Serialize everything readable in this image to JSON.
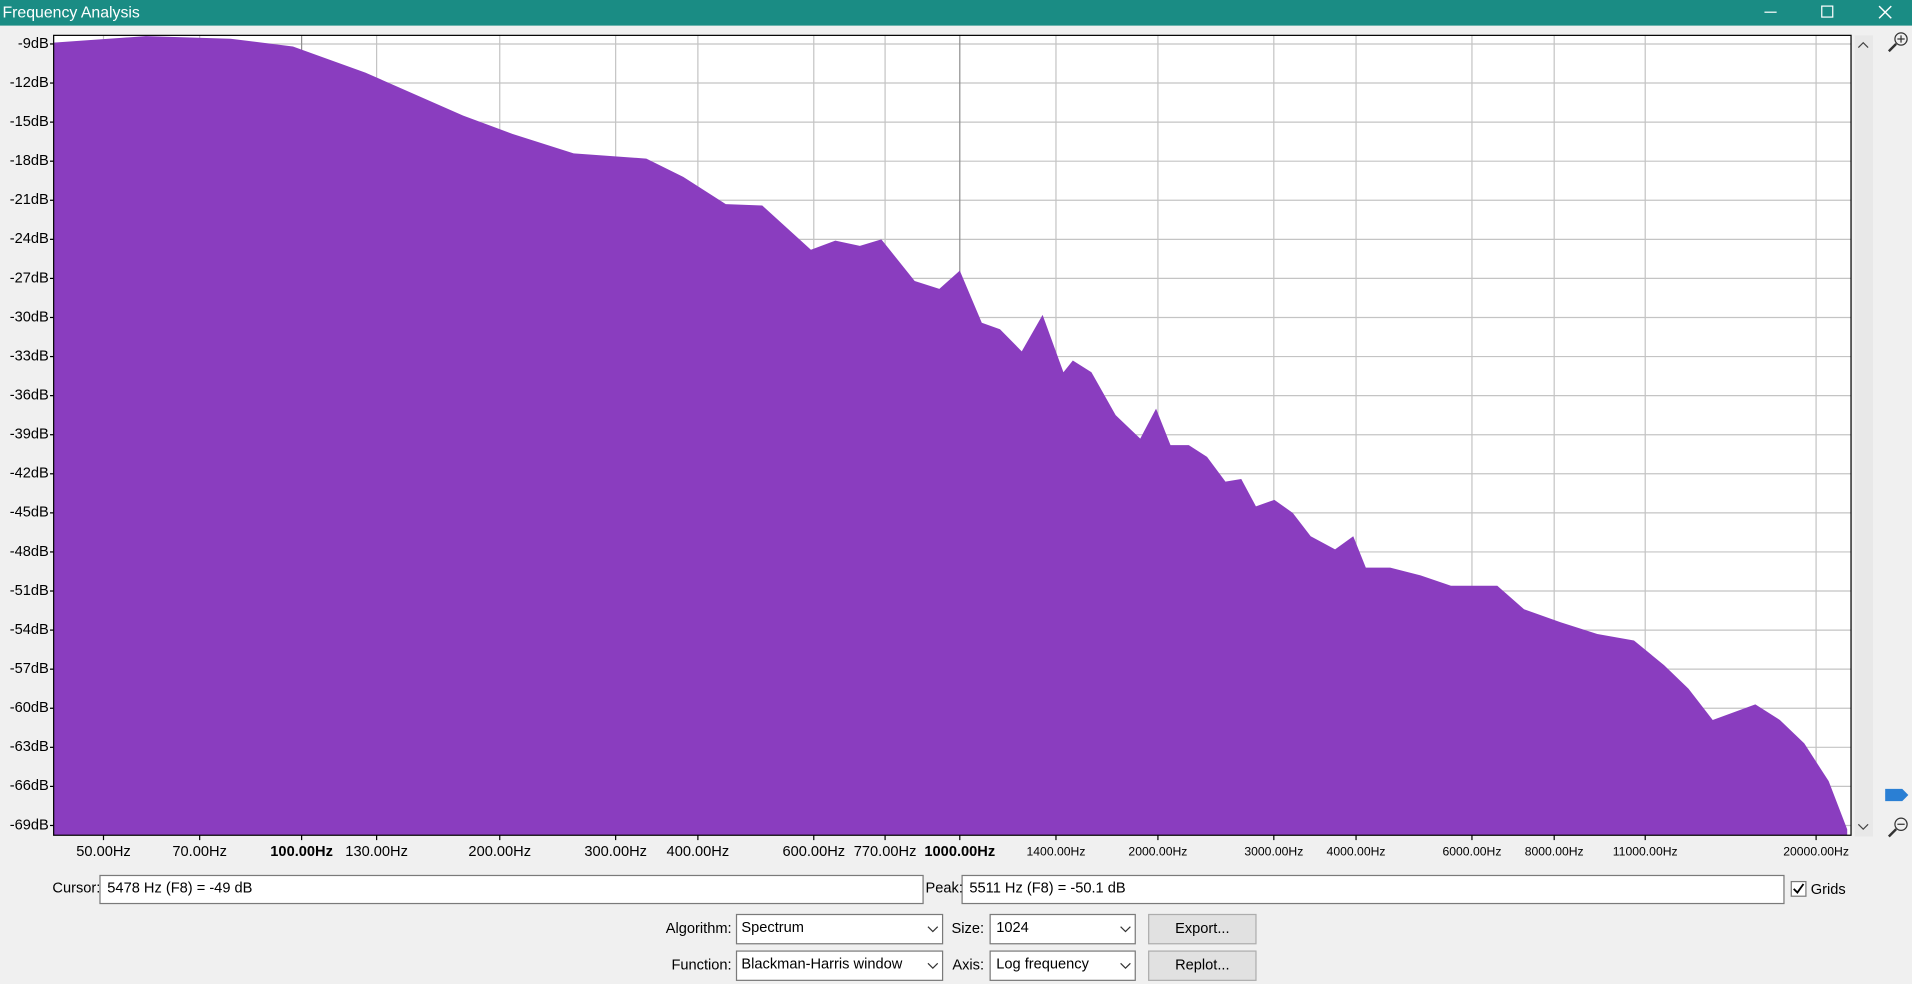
{
  "window": {
    "title": "Frequency Analysis"
  },
  "chart_data": {
    "type": "area",
    "x": [
      42,
      58,
      78,
      97,
      125,
      176,
      209,
      259,
      334,
      380,
      441,
      501,
      594,
      647,
      705,
      760,
      854,
      931,
      1000,
      1080,
      1151,
      1242,
      1336,
      1437,
      1485,
      1585,
      1725,
      1880,
      1987,
      2090,
      2228,
      2375,
      2533,
      2677,
      2818,
      3006,
      3205,
      3413,
      3717,
      3961,
      4139,
      4507,
      5012,
      5575,
      6556,
      7199,
      8180,
      9303,
      10576,
      11754,
      12800,
      13930,
      16170,
      17620,
      19190,
      20900,
      22300
    ],
    "values": [
      -8.9,
      -8.4,
      -8.6,
      -9.2,
      -11.2,
      -14.5,
      -15.9,
      -17.4,
      -17.8,
      -19.2,
      -21.3,
      -21.4,
      -24.8,
      -24.1,
      -24.5,
      -24.0,
      -27.2,
      -27.8,
      -26.4,
      -30.4,
      -30.9,
      -32.6,
      -29.8,
      -34.2,
      -33.3,
      -34.2,
      -37.5,
      -39.3,
      -37.0,
      -39.8,
      -39.8,
      -40.7,
      -42.6,
      -42.4,
      -44.5,
      -44.0,
      -45.0,
      -46.8,
      -47.8,
      -46.8,
      -49.2,
      -49.2,
      -49.8,
      -50.6,
      -50.6,
      -52.4,
      -53.4,
      -54.3,
      -54.8,
      -56.7,
      -58.5,
      -60.9,
      -59.7,
      -60.9,
      -62.7,
      -65.6,
      -69.3
    ],
    "color": "#8a3dbf",
    "xlim": [
      42,
      22600
    ],
    "ylim": [
      -69.75,
      -8.34
    ],
    "x_log": true,
    "grid": true,
    "xticks": [
      {
        "value": 50,
        "label": "50.00Hz"
      },
      {
        "value": 70,
        "label": "70.00Hz"
      },
      {
        "value": 100,
        "label": "100.00Hz"
      },
      {
        "value": 130,
        "label": "130.00Hz"
      },
      {
        "value": 200,
        "label": "200.00Hz"
      },
      {
        "value": 300,
        "label": "300.00Hz"
      },
      {
        "value": 400,
        "label": "400.00Hz"
      },
      {
        "value": 600,
        "label": "600.00Hz"
      },
      {
        "value": 770,
        "label": "770.00Hz"
      },
      {
        "value": 1000,
        "label": "1000.00Hz"
      },
      {
        "value": 1400,
        "label": "1400.00Hz"
      },
      {
        "value": 2000,
        "label": "2000.00Hz"
      },
      {
        "value": 3000,
        "label": "3000.00Hz"
      },
      {
        "value": 4000,
        "label": "4000.00Hz"
      },
      {
        "value": 6000,
        "label": "6000.00Hz"
      },
      {
        "value": 8000,
        "label": "8000.00Hz"
      },
      {
        "value": 11000,
        "label": "11000.00Hz"
      },
      {
        "value": 20000,
        "label": "20000.00Hz"
      }
    ],
    "yticks": [
      {
        "value": -9,
        "label": "-9dB"
      },
      {
        "value": -12,
        "label": "-12dB"
      },
      {
        "value": -15,
        "label": "-15dB"
      },
      {
        "value": -18,
        "label": "-18dB"
      },
      {
        "value": -21,
        "label": "-21dB"
      },
      {
        "value": -24,
        "label": "-24dB"
      },
      {
        "value": -27,
        "label": "-27dB"
      },
      {
        "value": -30,
        "label": "-30dB"
      },
      {
        "value": -33,
        "label": "-33dB"
      },
      {
        "value": -36,
        "label": "-36dB"
      },
      {
        "value": -39,
        "label": "-39dB"
      },
      {
        "value": -42,
        "label": "-42dB"
      },
      {
        "value": -45,
        "label": "-45dB"
      },
      {
        "value": -48,
        "label": "-48dB"
      },
      {
        "value": -51,
        "label": "-51dB"
      },
      {
        "value": -54,
        "label": "-54dB"
      },
      {
        "value": -57,
        "label": "-57dB"
      },
      {
        "value": -60,
        "label": "-60dB"
      },
      {
        "value": -63,
        "label": "-63dB"
      },
      {
        "value": -66,
        "label": "-66dB"
      },
      {
        "value": -69,
        "label": "-69dB"
      }
    ]
  },
  "controls": {
    "cursor_label": "Cursor:",
    "cursor_value": "5478 Hz (F8) = -49 dB",
    "peak_label": "Peak:",
    "peak_value": "5511 Hz (F8) = -50.1 dB",
    "grids_label": "Grids",
    "grids_checked": true,
    "algorithm_label": "Algorithm:",
    "algorithm": "Spectrum",
    "size_label": "Size:",
    "size": "1024",
    "export": "Export...",
    "function_label": "Function:",
    "function": "Blackman-Harris window",
    "axis_label": "Axis:",
    "axis": "Log frequency",
    "replot": "Replot..."
  }
}
